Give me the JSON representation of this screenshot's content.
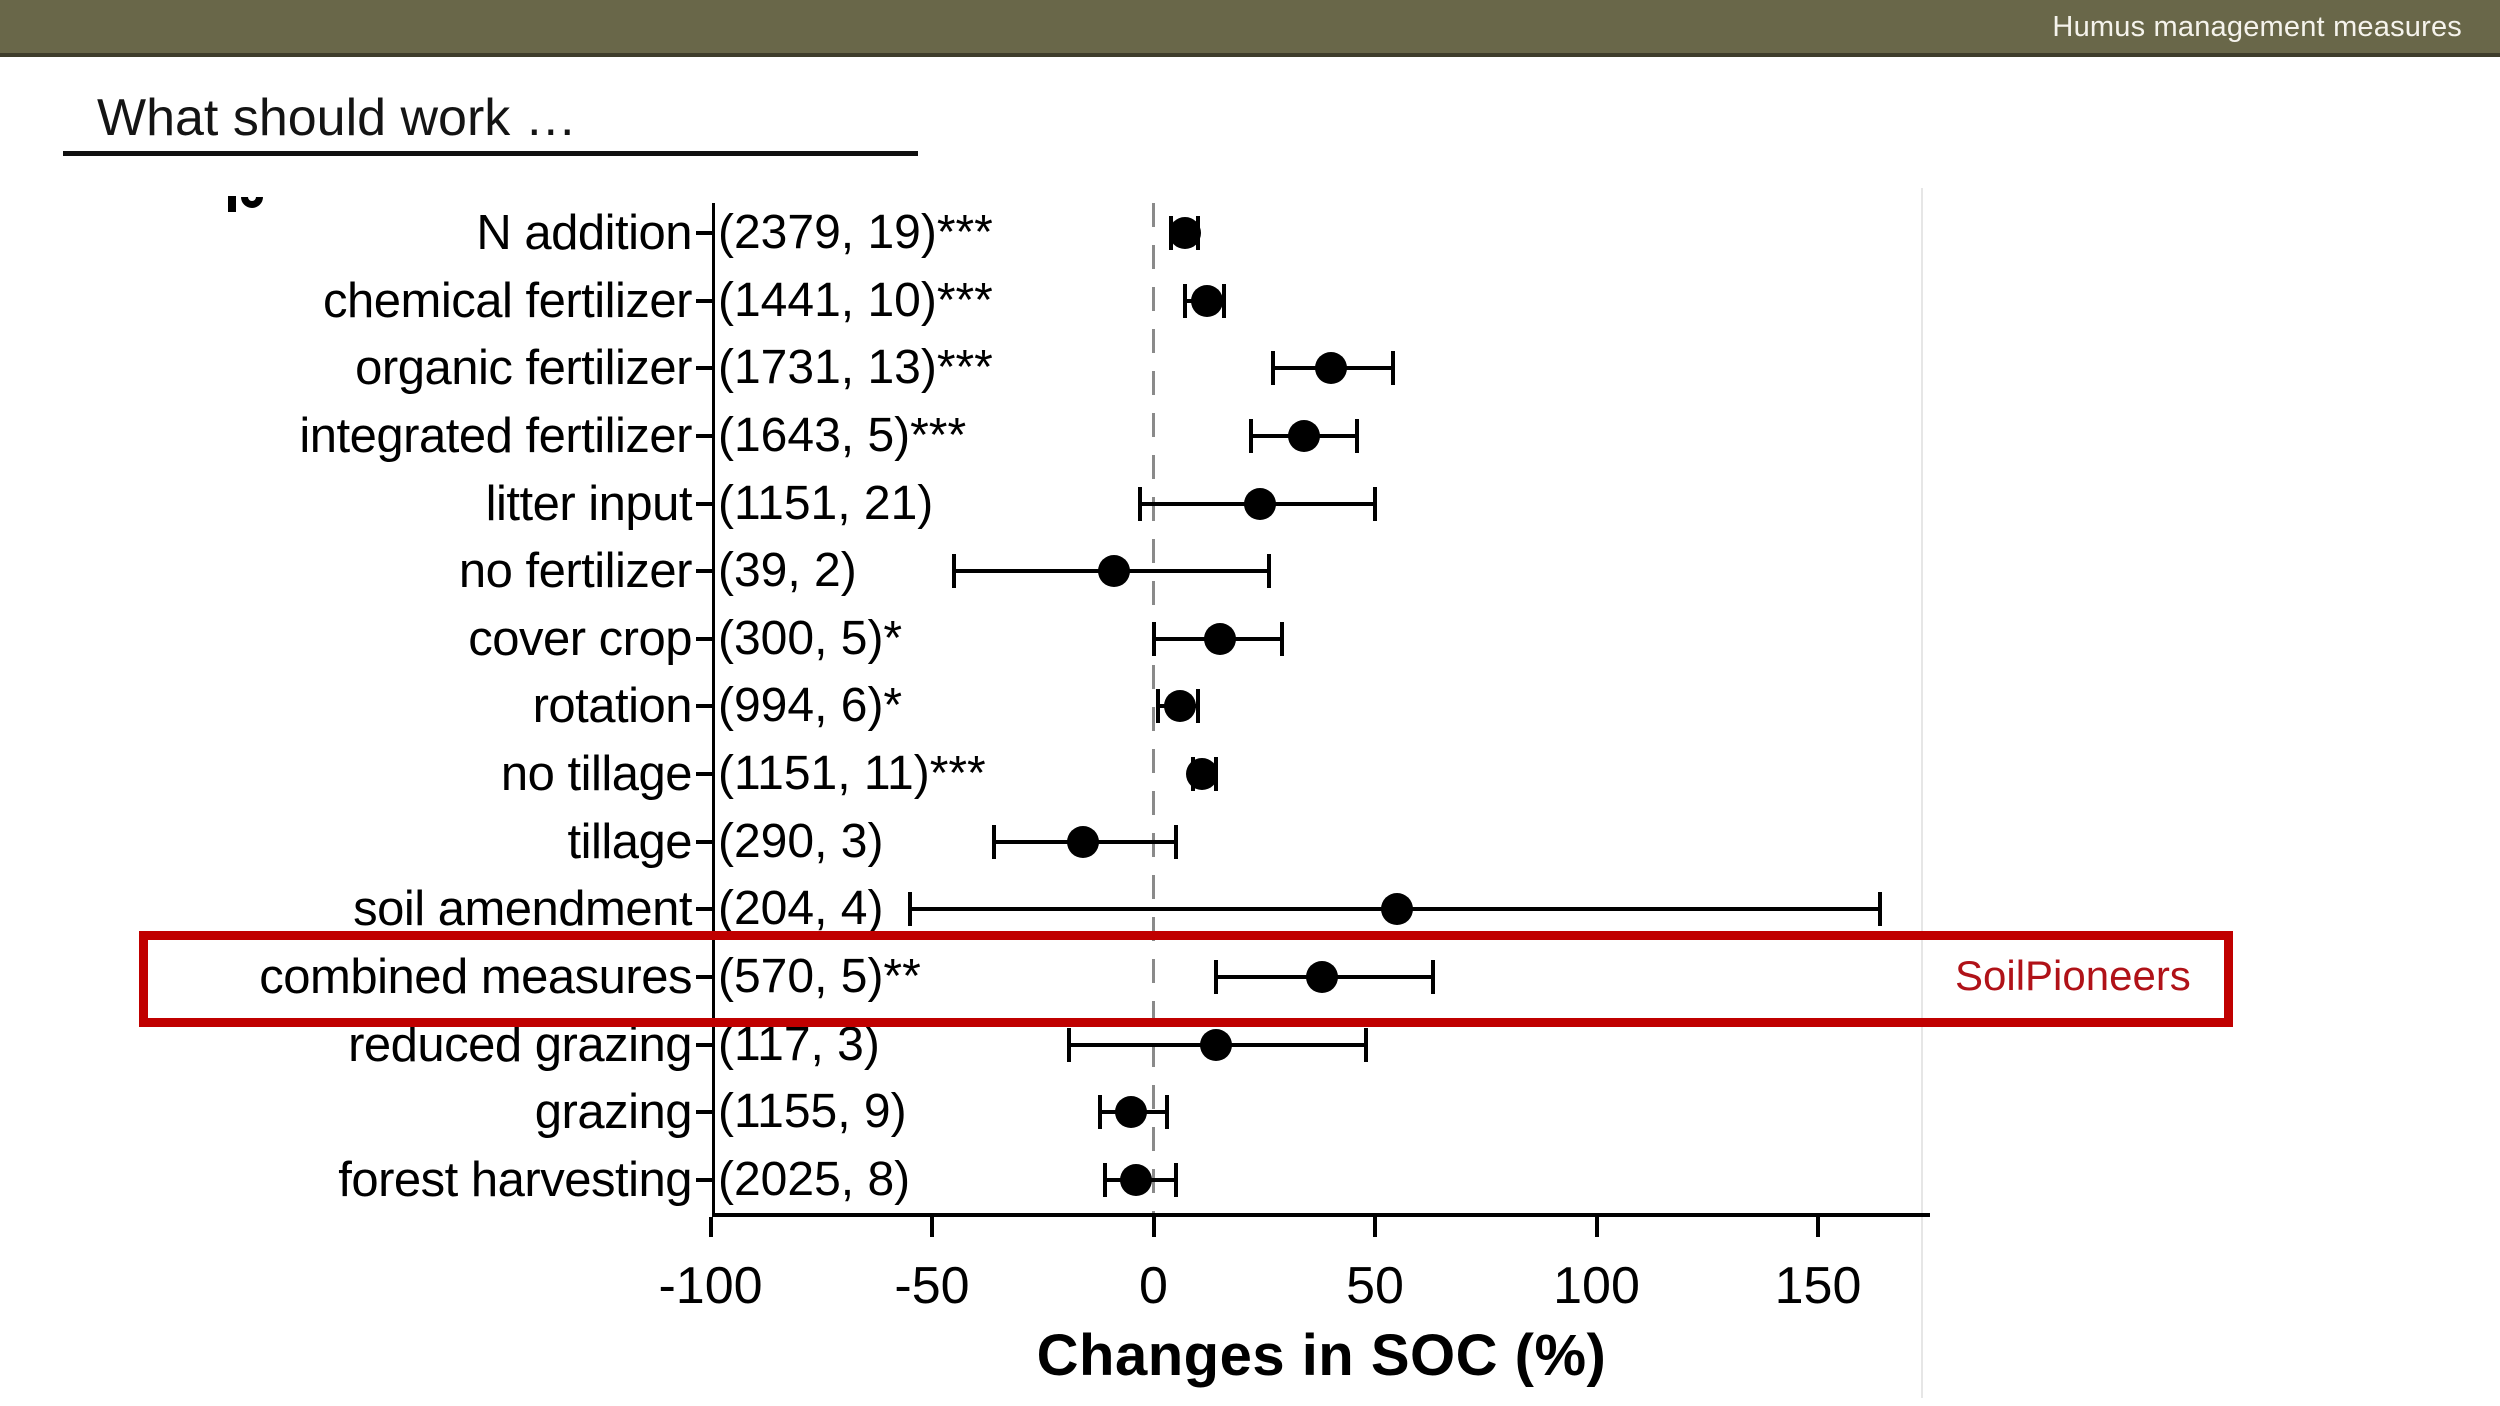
{
  "header": {
    "title": "Humus management measures"
  },
  "slide": {
    "title": "What should work …"
  },
  "annotation": {
    "label": "SoilPioneers"
  },
  "colors": {
    "header_bar": "#696749",
    "header_text": "#f5f3ec",
    "highlight_border": "#c00000",
    "annotation_text": "#b01218",
    "zero_line": "#8a8a8a",
    "data": "#000000"
  },
  "chart_data": {
    "type": "scatter",
    "subtype": "forest-plot-horizontal",
    "xlabel": "Changes in SOC (%)",
    "x_ticks": [
      -100,
      -50,
      0,
      50,
      100,
      150
    ],
    "xlim": [
      -100,
      175
    ],
    "zero_reference_line": 0,
    "grid": "off",
    "rows": [
      {
        "label": "N addition",
        "n": "(2379, 19)",
        "sig": "***",
        "mean": 7,
        "lo": 4,
        "hi": 10,
        "highlighted": false
      },
      {
        "label": "chemical fertilizer",
        "n": "(1441, 10)",
        "sig": "***",
        "mean": 12,
        "lo": 7,
        "hi": 16,
        "highlighted": false
      },
      {
        "label": "organic fertilizer",
        "n": "(1731, 13)",
        "sig": "***",
        "mean": 40,
        "lo": 27,
        "hi": 54,
        "highlighted": false
      },
      {
        "label": "integrated fertilizer",
        "n": "(1643, 5)",
        "sig": "***",
        "mean": 34,
        "lo": 22,
        "hi": 46,
        "highlighted": false
      },
      {
        "label": "litter input",
        "n": "(1151, 21)",
        "sig": "",
        "mean": 24,
        "lo": -3,
        "hi": 50,
        "highlighted": false
      },
      {
        "label": "no fertilizer",
        "n": "(39, 2)",
        "sig": "",
        "mean": -9,
        "lo": -45,
        "hi": 26,
        "highlighted": false
      },
      {
        "label": "cover crop",
        "n": "(300, 5)",
        "sig": "*",
        "mean": 15,
        "lo": 0,
        "hi": 29,
        "highlighted": false
      },
      {
        "label": "rotation",
        "n": "(994, 6)",
        "sig": "*",
        "mean": 6,
        "lo": 1,
        "hi": 10,
        "highlighted": false
      },
      {
        "label": "no tillage",
        "n": "(1151, 11)",
        "sig": "***",
        "mean": 11,
        "lo": 9,
        "hi": 14,
        "highlighted": false
      },
      {
        "label": "tillage",
        "n": "(290, 3)",
        "sig": "",
        "mean": -16,
        "lo": -36,
        "hi": 5,
        "highlighted": false
      },
      {
        "label": "soil amendment",
        "n": "(204, 4)",
        "sig": "",
        "mean": 55,
        "lo": -55,
        "hi": 164,
        "highlighted": false
      },
      {
        "label": "combined measures",
        "n": "(570, 5)",
        "sig": "**",
        "mean": 38,
        "lo": 14,
        "hi": 63,
        "highlighted": true
      },
      {
        "label": "reduced grazing",
        "n": "(117, 3)",
        "sig": "",
        "mean": 14,
        "lo": -19,
        "hi": 48,
        "highlighted": false
      },
      {
        "label": "grazing",
        "n": "(1155, 9)",
        "sig": "",
        "mean": -5,
        "lo": -12,
        "hi": 3,
        "highlighted": false
      },
      {
        "label": "forest harvesting",
        "n": "(2025, 8)",
        "sig": "",
        "mean": -4,
        "lo": -11,
        "hi": 5,
        "highlighted": false
      }
    ]
  }
}
